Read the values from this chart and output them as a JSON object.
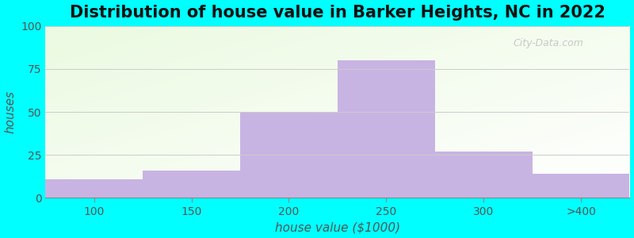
{
  "title": "Distribution of house value in Barker Heights, NC in 2022",
  "xlabel": "house value ($1000)",
  "ylabel": "houses",
  "bar_labels": [
    "100",
    "150",
    "200",
    "250",
    "300",
    ">400"
  ],
  "bar_heights": [
    11,
    16,
    50,
    80,
    27,
    14
  ],
  "bar_color": "#c8b4e3",
  "ylim": [
    0,
    100
  ],
  "yticks": [
    0,
    25,
    50,
    75,
    100
  ],
  "background_outer": "#00ffff",
  "title_fontsize": 15,
  "axis_label_fontsize": 11,
  "tick_fontsize": 10,
  "grid_color": "#cccccc",
  "bar_width": 1.0,
  "watermark": "City-Data.com"
}
